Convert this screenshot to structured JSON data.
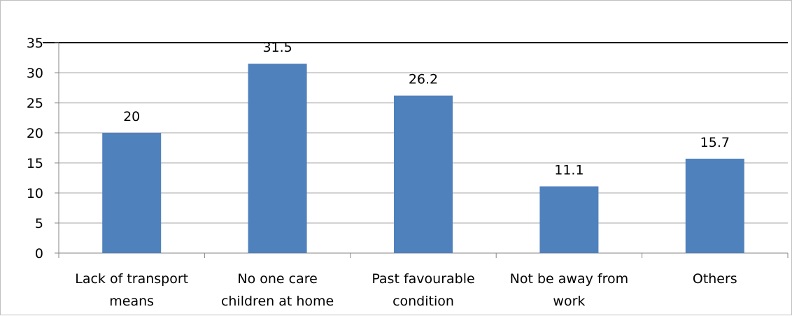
{
  "chart_data": {
    "type": "bar",
    "categories": [
      [
        "Lack of transport",
        "means"
      ],
      [
        "No one care",
        "children at home"
      ],
      [
        "Past favourable",
        "condition"
      ],
      [
        "Not be away from",
        "work"
      ],
      [
        "Others"
      ]
    ],
    "values": [
      20,
      31.5,
      26.2,
      11.1,
      15.7
    ],
    "data_labels": [
      "20",
      "31.5",
      "26.2",
      "11.1",
      "15.7"
    ],
    "title": "",
    "xlabel": "",
    "ylabel": "",
    "ylim": [
      0,
      35
    ],
    "yticks": [
      0,
      5,
      10,
      15,
      20,
      25,
      30,
      35
    ],
    "grid": true,
    "legend": "none",
    "bar_color": "#4f81bd",
    "grid_color": "#a6a6a6",
    "top_line_color": "#000000"
  }
}
